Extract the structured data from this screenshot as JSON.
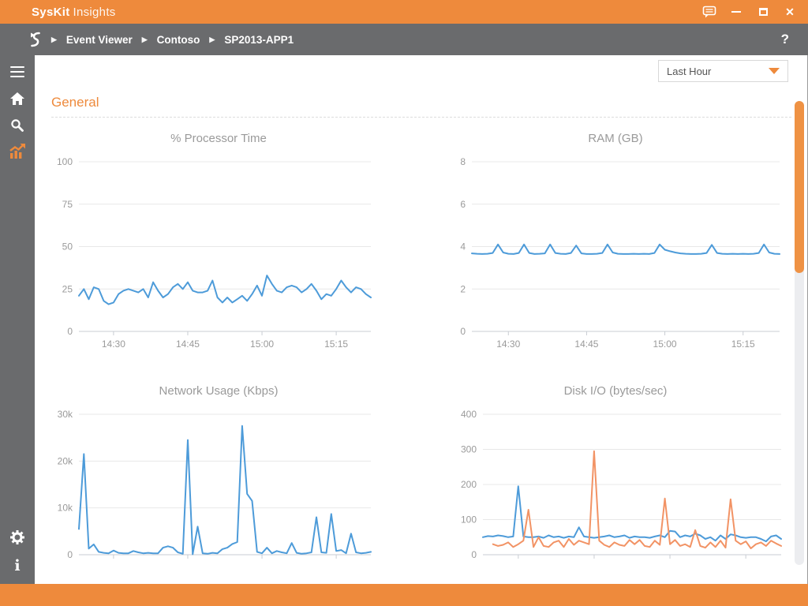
{
  "window": {
    "brand": "SysKit",
    "product": "Insights",
    "close_glyph": "✕"
  },
  "breadcrumb": {
    "items": [
      "Event Viewer",
      "Contoso",
      "SP2013-APP1"
    ],
    "separator": "▶"
  },
  "help_label": "?",
  "toolbar": {
    "time_range_value": "Last Hour"
  },
  "page": {
    "section_title": "General"
  },
  "icons": [
    "logo-icon",
    "feedback-icon",
    "minimize-icon",
    "maximize-icon",
    "close-icon",
    "help-icon",
    "menu-icon",
    "home-icon",
    "search-icon",
    "performance-chart-icon",
    "settings-gear-icon",
    "info-icon",
    "dropdown-arrow-icon"
  ],
  "colors": {
    "accent_orange": "#EE8A3C",
    "bar_gray": "#6A6B6D",
    "series_blue": "#4D9BD9",
    "series_orange": "#F29365",
    "chart_text": "#9A9A9A",
    "gridline": "#E8E8E8",
    "axis_line": "#C9CDD3",
    "scroll_thumb": "#EF9244"
  },
  "chart_data": [
    {
      "type": "line",
      "title": "% Processor Time",
      "ylim": [
        0,
        100
      ],
      "grid": true,
      "legend": "none",
      "y_tick_values": [
        100,
        75,
        50,
        25,
        0
      ],
      "y_tick_labels": [
        "100",
        "75",
        "50",
        "25",
        "0"
      ],
      "x_tick_indices": [
        7,
        22,
        37,
        52
      ],
      "x_tick_labels": [
        "14:30",
        "14:45",
        "15:00",
        "15:15"
      ],
      "series": [
        {
          "name": "processor",
          "color": "#4D9BD9",
          "values": [
            21,
            25,
            19,
            26,
            25,
            18,
            16,
            17,
            22,
            24,
            25,
            24,
            23,
            25,
            20,
            29,
            24,
            20,
            22,
            26,
            28,
            25,
            29,
            24,
            23,
            23,
            24,
            30,
            20,
            17,
            20,
            17,
            19,
            21,
            18,
            22,
            27,
            21,
            33,
            28,
            24,
            23,
            26,
            27,
            26,
            23,
            25,
            28,
            24,
            19,
            22,
            21,
            25,
            30,
            26,
            23,
            26,
            25,
            22,
            20
          ]
        }
      ]
    },
    {
      "type": "line",
      "title": "RAM (GB)",
      "ylim": [
        0,
        8
      ],
      "grid": true,
      "legend": "none",
      "y_tick_values": [
        8,
        6,
        4,
        2,
        0
      ],
      "y_tick_labels": [
        "8",
        "6",
        "4",
        "2",
        "0"
      ],
      "x_tick_indices": [
        7,
        22,
        37,
        52
      ],
      "x_tick_labels": [
        "14:30",
        "14:45",
        "15:00",
        "15:15"
      ],
      "series": [
        {
          "name": "ram",
          "color": "#4D9BD9",
          "values": [
            3.68,
            3.66,
            3.65,
            3.66,
            3.7,
            4.1,
            3.72,
            3.66,
            3.65,
            3.7,
            4.1,
            3.7,
            3.65,
            3.66,
            3.68,
            4.1,
            3.7,
            3.66,
            3.65,
            3.7,
            4.05,
            3.68,
            3.65,
            3.65,
            3.66,
            3.7,
            4.1,
            3.72,
            3.66,
            3.65,
            3.65,
            3.66,
            3.65,
            3.66,
            3.65,
            3.7,
            4.1,
            3.85,
            3.78,
            3.72,
            3.68,
            3.66,
            3.65,
            3.65,
            3.66,
            3.7,
            4.08,
            3.7,
            3.66,
            3.65,
            3.66,
            3.65,
            3.66,
            3.65,
            3.66,
            3.7,
            4.1,
            3.72,
            3.66,
            3.65
          ]
        }
      ]
    },
    {
      "type": "line",
      "title": "Network Usage (Kbps)",
      "ylim": [
        0,
        30000
      ],
      "grid": true,
      "legend": "none",
      "y_tick_values": [
        30000,
        20000,
        10000,
        0
      ],
      "y_tick_labels": [
        "30k",
        "20k",
        "10k",
        "0"
      ],
      "x_tick_indices": [
        7,
        22,
        37,
        52
      ],
      "x_tick_labels": [
        "",
        "",
        "",
        ""
      ],
      "series": [
        {
          "name": "network",
          "color": "#4D9BD9",
          "values": [
            5500,
            21500,
            1300,
            2200,
            600,
            400,
            300,
            900,
            400,
            300,
            300,
            800,
            500,
            300,
            400,
            300,
            300,
            1500,
            1800,
            1500,
            500,
            200,
            24500,
            100,
            6000,
            300,
            200,
            400,
            300,
            1200,
            1500,
            2300,
            2700,
            27500,
            13000,
            11500,
            600,
            300,
            1500,
            300,
            800,
            500,
            300,
            2500,
            400,
            200,
            300,
            500,
            8000,
            500,
            400,
            8700,
            800,
            1000,
            300,
            4500,
            500,
            300,
            400,
            600
          ]
        }
      ]
    },
    {
      "type": "line",
      "title": "Disk I/O (bytes/sec)",
      "ylim": [
        0,
        400
      ],
      "grid": true,
      "legend": "none",
      "y_tick_values": [
        400,
        300,
        200,
        100,
        0
      ],
      "y_tick_labels": [
        "400",
        "300",
        "200",
        "100",
        "0"
      ],
      "x_tick_indices": [
        7,
        22,
        37,
        52
      ],
      "x_tick_labels": [
        "",
        "",
        "",
        ""
      ],
      "series": [
        {
          "name": "disk-read",
          "color": "#4D9BD9",
          "values": [
            50,
            53,
            52,
            55,
            53,
            50,
            52,
            195,
            52,
            50,
            50,
            52,
            48,
            55,
            50,
            52,
            48,
            52,
            50,
            78,
            52,
            50,
            48,
            50,
            52,
            55,
            50,
            52,
            55,
            48,
            52,
            50,
            50,
            48,
            52,
            55,
            50,
            68,
            66,
            50,
            55,
            52,
            60,
            55,
            45,
            50,
            40,
            55,
            45,
            58,
            55,
            50,
            48,
            50,
            50,
            45,
            38,
            52,
            55,
            45
          ]
        },
        {
          "name": "disk-write",
          "color": "#F29365",
          "values": [
            null,
            null,
            30,
            25,
            28,
            35,
            22,
            30,
            40,
            128,
            22,
            50,
            25,
            22,
            35,
            40,
            22,
            45,
            28,
            40,
            35,
            30,
            295,
            40,
            28,
            22,
            35,
            28,
            25,
            42,
            30,
            42,
            25,
            22,
            40,
            28,
            160,
            30,
            42,
            25,
            30,
            22,
            70,
            25,
            20,
            35,
            22,
            40,
            20,
            158,
            40,
            30,
            38,
            18,
            30,
            35,
            25,
            40,
            32,
            25
          ]
        }
      ]
    }
  ]
}
